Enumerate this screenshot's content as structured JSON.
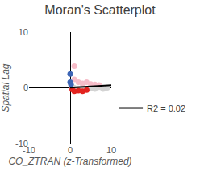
{
  "chart_data": {
    "type": "scatter",
    "title": "Moran's Scatterplot",
    "x_label": "CO_ZTRAN (z-Transformed)",
    "y_label": "Spatial Lag",
    "xlim": [
      -10,
      10
    ],
    "ylim": [
      -10,
      10
    ],
    "xticks": [
      -10,
      0,
      10
    ],
    "yticks": [
      -10,
      0,
      10
    ],
    "grid": false,
    "legend": "right",
    "marker": "circle",
    "series": [
      {
        "color": "#d3d3d3",
        "x": [
          0.5,
          1,
          2,
          3,
          5,
          6,
          7,
          8,
          9
        ],
        "values": [
          0.2,
          0,
          -0.1,
          0.1,
          -0.1,
          -0.2,
          0.1,
          -0.2,
          0
        ]
      },
      {
        "color": "#f6bcc8",
        "x": [
          1,
          1,
          2,
          3,
          4,
          5,
          6,
          7
        ],
        "values": [
          3.9,
          1.5,
          1,
          0.8,
          1,
          0.7,
          0.6,
          0.5
        ]
      },
      {
        "color": "#e3231f",
        "x": [
          0.5,
          1,
          2,
          3,
          4
        ],
        "values": [
          -0.3,
          -0.6,
          -0.5,
          -0.6,
          -0.4
        ]
      },
      {
        "color": "#3d65b5",
        "x": [
          0,
          0,
          0.2
        ],
        "values": [
          2.5,
          1,
          0.6
        ]
      },
      {
        "name": "R2 = 0.02",
        "type": "line",
        "color": "#000000",
        "x": [
          0,
          10
        ],
        "values": [
          0.05,
          0.45
        ]
      }
    ]
  }
}
